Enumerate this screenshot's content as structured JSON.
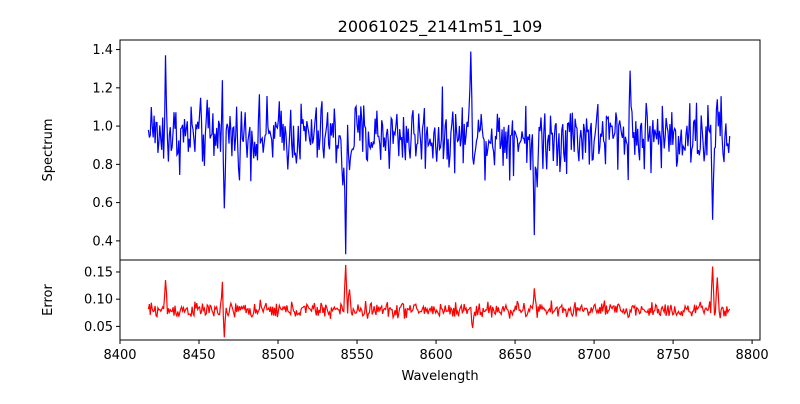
{
  "chart_data": {
    "title": "20061025_2141m51_109",
    "xlabel": "Wavelength",
    "xlim": [
      8400,
      8805
    ],
    "xticks": [
      8400,
      8450,
      8500,
      8550,
      8600,
      8650,
      8700,
      8750,
      8800
    ],
    "panels": [
      {
        "type": "line",
        "ylabel": "Spectrum",
        "ylim": [
          0.3,
          1.45
        ],
        "yticks": [
          0.4,
          0.6,
          0.8,
          1.0,
          1.2,
          1.4
        ],
        "ytick_labels": [
          "0.4",
          "0.6",
          "0.8",
          "1.0",
          "1.2",
          "1.4"
        ],
        "color": "#0000ff",
        "x_start": 8418,
        "x_end": 8786,
        "baseline": 0.95,
        "noise": 0.11,
        "features": [
          {
            "x": 8420,
            "y": 1.1
          },
          {
            "x": 8428,
            "y": 0.66
          },
          {
            "x": 8429,
            "y": 1.37
          },
          {
            "x": 8465,
            "y": 1.24
          },
          {
            "x": 8466,
            "y": 0.57
          },
          {
            "x": 8541,
            "y": 0.69
          },
          {
            "x": 8543,
            "y": 0.33
          },
          {
            "x": 8545,
            "y": 0.77
          },
          {
            "x": 8622,
            "y": 1.39
          },
          {
            "x": 8662,
            "y": 0.43
          },
          {
            "x": 8664,
            "y": 0.68
          },
          {
            "x": 8723,
            "y": 1.29
          },
          {
            "x": 8775,
            "y": 0.51
          },
          {
            "x": 8778,
            "y": 1.14
          },
          {
            "x": 8785,
            "y": 0.86
          }
        ]
      },
      {
        "type": "line",
        "ylabel": "Error",
        "ylim": [
          0.025,
          0.172
        ],
        "yticks": [
          0.05,
          0.1,
          0.15
        ],
        "ytick_labels": [
          "0.05",
          "0.10",
          "0.15"
        ],
        "color": "#ff0000",
        "x_start": 8418,
        "x_end": 8786,
        "baseline": 0.08,
        "noise": 0.009,
        "features": [
          {
            "x": 8429,
            "y": 0.135
          },
          {
            "x": 8465,
            "y": 0.132
          },
          {
            "x": 8466,
            "y": 0.03
          },
          {
            "x": 8543,
            "y": 0.163
          },
          {
            "x": 8545,
            "y": 0.118
          },
          {
            "x": 8623,
            "y": 0.047
          },
          {
            "x": 8662,
            "y": 0.12
          },
          {
            "x": 8775,
            "y": 0.16
          },
          {
            "x": 8778,
            "y": 0.14
          },
          {
            "x": 8780,
            "y": 0.065
          }
        ]
      }
    ]
  }
}
